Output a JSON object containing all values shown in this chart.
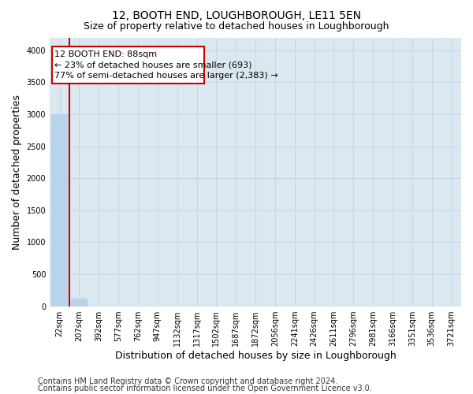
{
  "title": "12, BOOTH END, LOUGHBOROUGH, LE11 5EN",
  "subtitle": "Size of property relative to detached houses in Loughborough",
  "xlabel": "Distribution of detached houses by size in Loughborough",
  "ylabel": "Number of detached properties",
  "footnote1": "Contains HM Land Registry data © Crown copyright and database right 2024.",
  "footnote2": "Contains public sector information licensed under the Open Government Licence v3.0.",
  "categories": [
    "22sqm",
    "207sqm",
    "392sqm",
    "577sqm",
    "762sqm",
    "947sqm",
    "1132sqm",
    "1317sqm",
    "1502sqm",
    "1687sqm",
    "1872sqm",
    "2056sqm",
    "2241sqm",
    "2426sqm",
    "2611sqm",
    "2796sqm",
    "2981sqm",
    "3166sqm",
    "3351sqm",
    "3536sqm",
    "3721sqm"
  ],
  "values": [
    3000,
    115,
    0,
    0,
    0,
    0,
    0,
    0,
    0,
    0,
    0,
    0,
    0,
    0,
    0,
    0,
    0,
    0,
    0,
    0,
    0
  ],
  "bar_color": "#b8d4ea",
  "bar_edge_color": "#b8d4ea",
  "highlight_color": "#cc0000",
  "annotation_line1": "12 BOOTH END: 88sqm",
  "annotation_line2": "← 23% of detached houses are smaller (693)",
  "annotation_line3": "77% of semi-detached houses are larger (2,383) →",
  "annotation_fontsize": 8,
  "ylim": [
    0,
    4200
  ],
  "yticks": [
    0,
    500,
    1000,
    1500,
    2000,
    2500,
    3000,
    3500,
    4000
  ],
  "grid_color": "#c8d4e4",
  "bg_color": "#dce8f0",
  "title_fontsize": 10,
  "subtitle_fontsize": 9,
  "xlabel_fontsize": 9,
  "ylabel_fontsize": 9,
  "tick_fontsize": 7,
  "footnote_fontsize": 7
}
